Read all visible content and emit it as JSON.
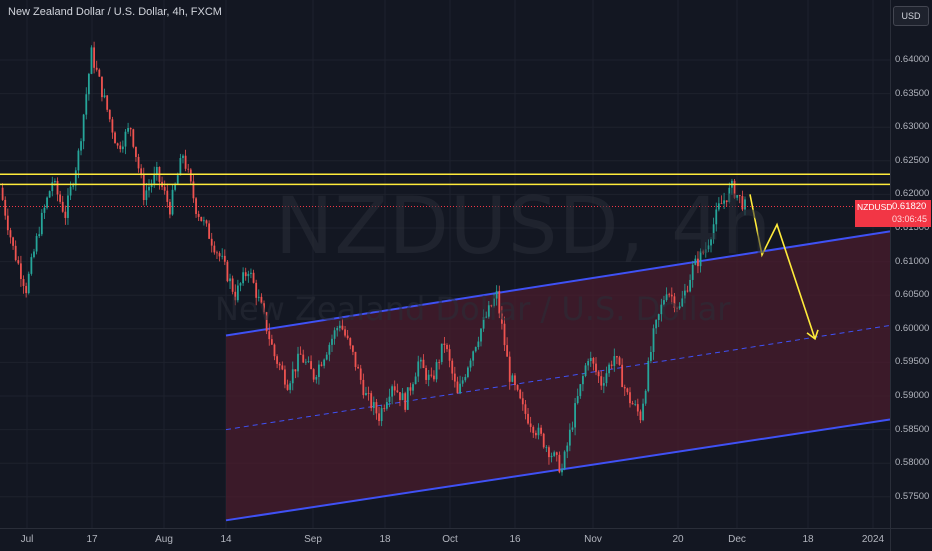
{
  "header": {
    "title": "New Zealand Dollar / U.S. Dollar, 4h, FXCM"
  },
  "watermark": {
    "symbol": "NZDUSD, 4h",
    "name": "New Zealand Dollar / U.S. Dollar"
  },
  "currency_button": {
    "label": "USD"
  },
  "last_price": {
    "symbol": "NZDUSD",
    "value": "0.61820",
    "countdown": "03:06:45",
    "color": "#f23645"
  },
  "price_axis": {
    "ticks": [
      "0.64000",
      "0.63500",
      "0.63000",
      "0.62500",
      "0.62000",
      "0.61500",
      "0.61000",
      "0.60500",
      "0.60000",
      "0.59500",
      "0.59000",
      "0.58500",
      "0.58000",
      "0.57500"
    ]
  },
  "time_axis": {
    "ticks": [
      "Jul",
      "17",
      "Aug",
      "14",
      "Sep",
      "18",
      "Oct",
      "16",
      "Nov",
      "20",
      "Dec",
      "18",
      "2024"
    ]
  },
  "colors": {
    "resistance": "#ffeb3b",
    "channel": "#3f51f5",
    "channel_fill": "#4a1c2c",
    "arrow": "#ffeb3b",
    "up": "#26a69a",
    "down": "#ef5350"
  },
  "chart_data": {
    "type": "candlestick",
    "symbol": "NZDUSD",
    "timeframe": "4h",
    "ylim": [
      0.5715,
      0.644
    ],
    "x_labels": [
      "Jul",
      "17",
      "Aug",
      "14",
      "Sep",
      "18",
      "Oct",
      "16",
      "Nov",
      "20",
      "Dec",
      "18",
      "2024"
    ],
    "price_path": [
      [
        "Jul start",
        0.621
      ],
      [
        "",
        0.612
      ],
      [
        "",
        0.606
      ],
      [
        "",
        0.615
      ],
      [
        "",
        0.622
      ],
      [
        "",
        0.617
      ],
      [
        "",
        0.626
      ],
      [
        "17",
        0.641
      ],
      [
        "",
        0.634
      ],
      [
        "",
        0.627
      ],
      [
        "",
        0.63
      ],
      [
        "",
        0.62
      ],
      [
        "",
        0.623
      ],
      [
        "",
        0.618
      ],
      [
        "",
        0.626
      ],
      [
        "Aug",
        0.618
      ],
      [
        "",
        0.614
      ],
      [
        "",
        0.61
      ],
      [
        "",
        0.605
      ],
      [
        "",
        0.609
      ],
      [
        "",
        0.603
      ],
      [
        "14",
        0.596
      ],
      [
        "",
        0.592
      ],
      [
        "",
        0.596
      ],
      [
        "",
        0.593
      ],
      [
        "",
        0.597
      ],
      [
        "",
        0.601
      ],
      [
        "Sep",
        0.596
      ],
      [
        "",
        0.59
      ],
      [
        "",
        0.587
      ],
      [
        "",
        0.592
      ],
      [
        "18",
        0.589
      ],
      [
        "",
        0.595
      ],
      [
        "",
        0.592
      ],
      [
        "",
        0.598
      ],
      [
        "Oct",
        0.59
      ],
      [
        "",
        0.596
      ],
      [
        "",
        0.601
      ],
      [
        "",
        0.605
      ],
      [
        "16",
        0.593
      ],
      [
        "",
        0.588
      ],
      [
        "",
        0.585
      ],
      [
        "",
        0.582
      ],
      [
        "",
        0.579
      ],
      [
        "Nov",
        0.588
      ],
      [
        "",
        0.596
      ],
      [
        "",
        0.592
      ],
      [
        "",
        0.596
      ],
      [
        "",
        0.59
      ],
      [
        "",
        0.587
      ],
      [
        "",
        0.599
      ],
      [
        "20",
        0.606
      ],
      [
        "",
        0.603
      ],
      [
        "",
        0.609
      ],
      [
        "",
        0.612
      ],
      [
        "",
        0.618
      ],
      [
        "Dec",
        0.621
      ],
      [
        "",
        0.6182
      ]
    ],
    "resistance_zone": [
      0.6215,
      0.623
    ],
    "last_price": 0.6182,
    "channel": {
      "upper": [
        [
          "Aug",
          0.599
        ],
        [
          "2024",
          0.6145
        ]
      ],
      "mid": [
        [
          "Aug",
          0.585
        ],
        [
          "2024",
          0.6005
        ]
      ],
      "lower": [
        [
          "Aug",
          0.5715
        ],
        [
          "2024",
          0.5865
        ]
      ]
    },
    "projection": [
      [
        "Dec",
        0.62
      ],
      [
        "",
        0.611
      ],
      [
        "",
        0.6155
      ],
      [
        "18",
        0.5985
      ]
    ]
  }
}
